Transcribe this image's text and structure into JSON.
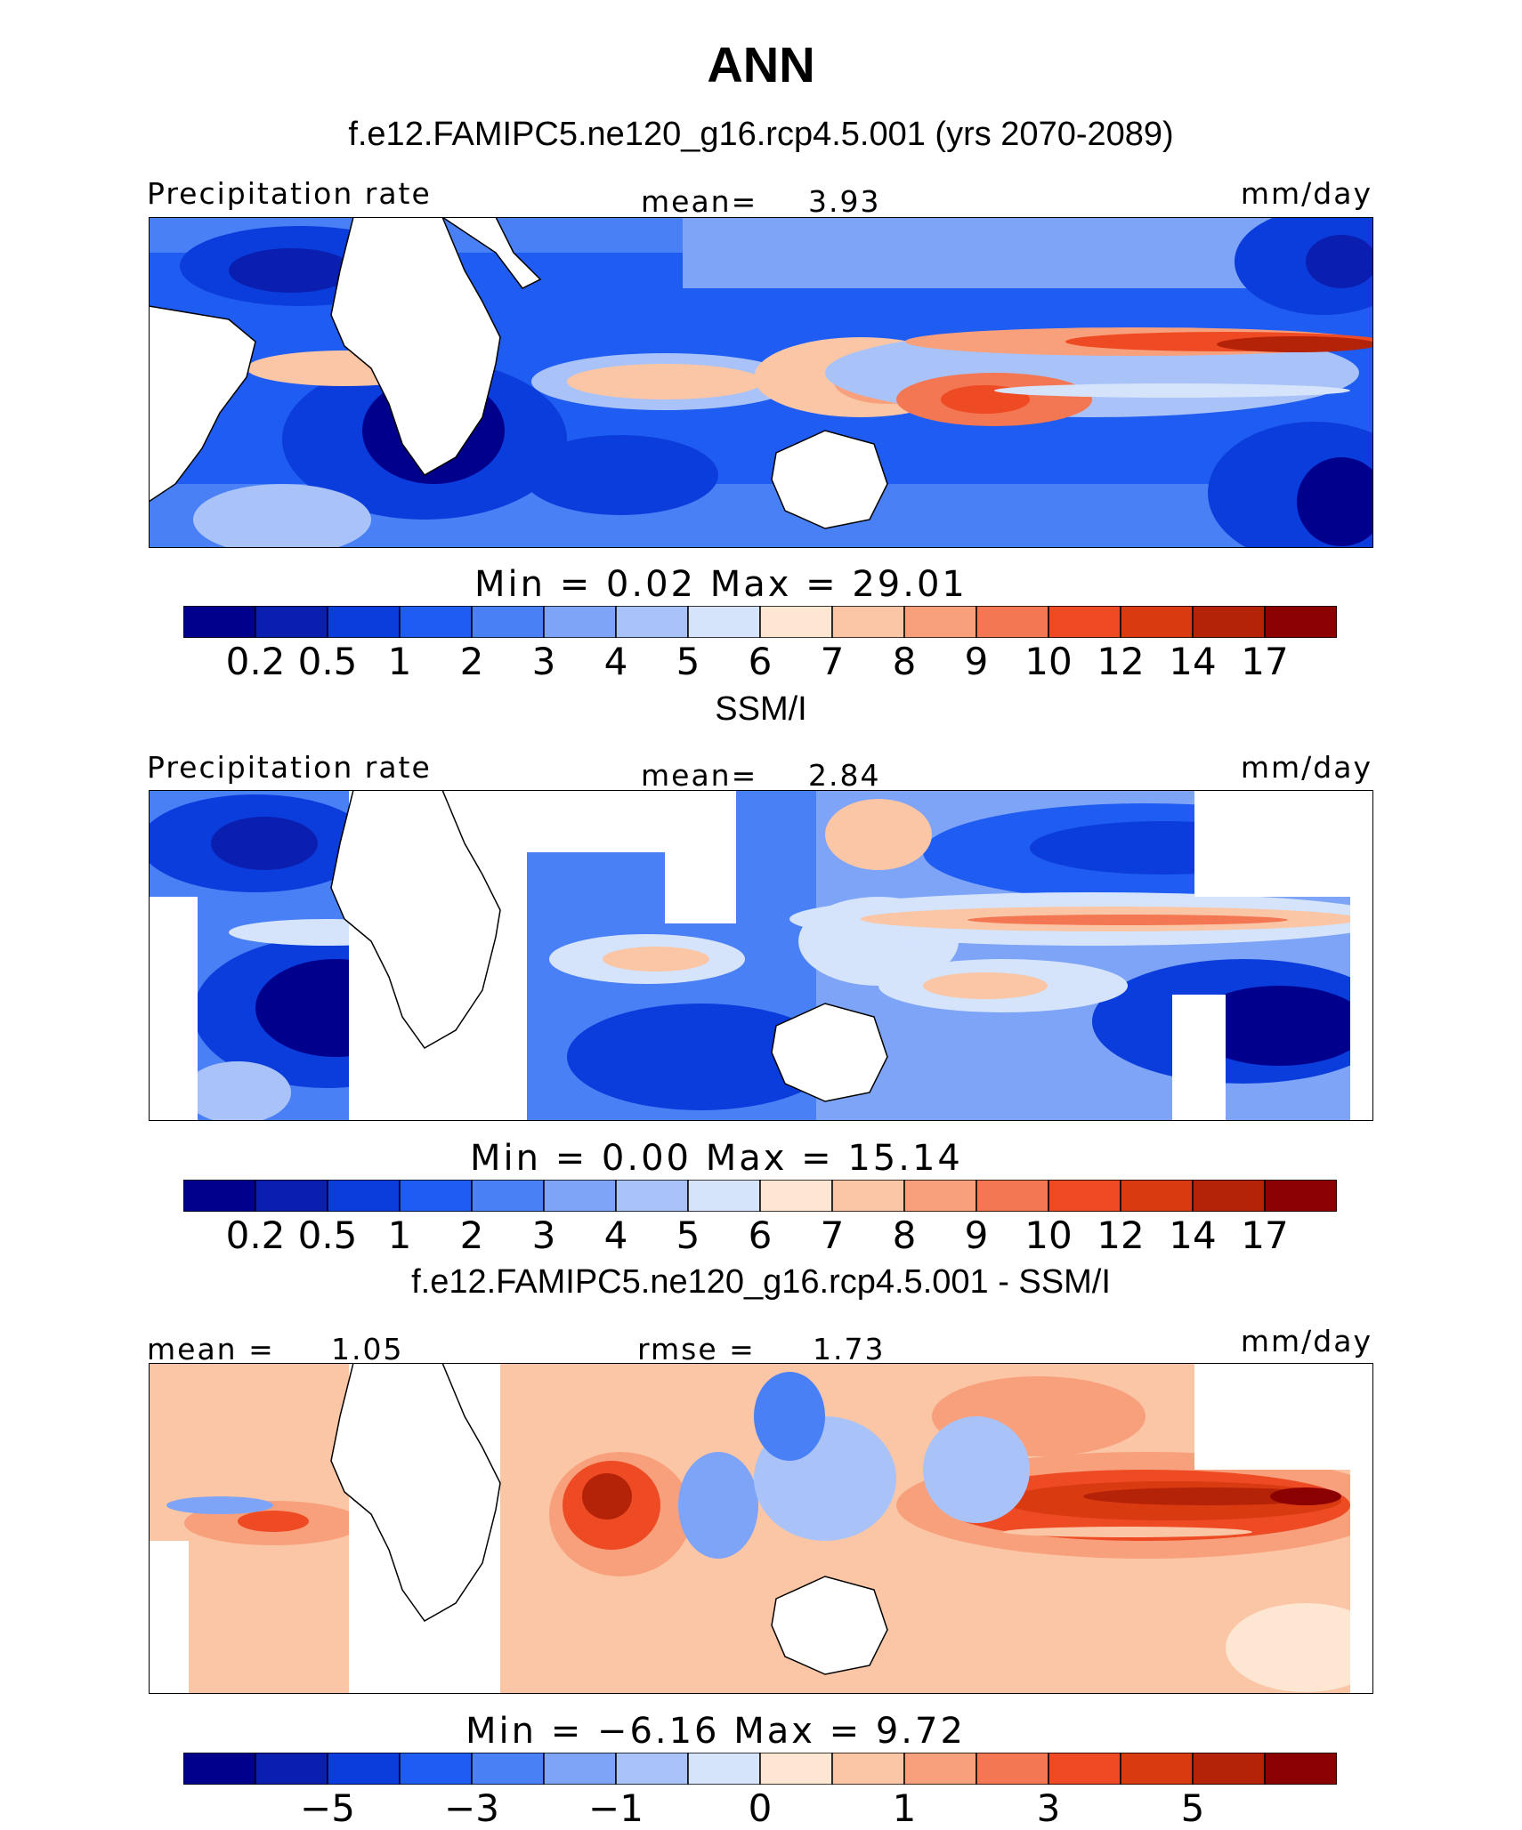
{
  "figure": {
    "title": "ANN"
  },
  "panels": [
    {
      "title": "f.e12.FAMIPC5.ne120_g16.rcp4.5.001 (yrs 2070-2089)",
      "left_label": "Precipitation rate",
      "center_label": "mean=",
      "center_value": "3.93",
      "right_label": "mm/day",
      "minmax_text": "Min  =    0.02  Max  =   29.01"
    },
    {
      "title": "SSM/I",
      "left_label": "Precipitation rate",
      "center_label": "mean=",
      "center_value": "2.84",
      "right_label": "mm/day",
      "minmax_text": "Min  =    0.00  Max  =   15.14"
    },
    {
      "title": "f.e12.FAMIPC5.ne120_g16.rcp4.5.001 - SSM/I",
      "left_label": "mean =",
      "left_value": "1.05",
      "center_label": "rmse =",
      "center_value": "1.73",
      "right_label": "mm/day",
      "minmax_text": "Min  =  −6.16  Max  =    9.72"
    }
  ],
  "colorbars": {
    "precip": {
      "colors": [
        "#00008c",
        "#0a1fb0",
        "#0b3cdc",
        "#1f5cf2",
        "#4a80f5",
        "#7ea4f7",
        "#a9c3f9",
        "#d5e3fb",
        "#fde7d3",
        "#fbc6a5",
        "#f8a07c",
        "#f47753",
        "#ee4a23",
        "#d93a10",
        "#b42208",
        "#8b0000"
      ],
      "tick_labels": [
        "0.2",
        "0.5",
        "1",
        "2",
        "3",
        "4",
        "5",
        "6",
        "7",
        "8",
        "9",
        "10",
        "12",
        "14",
        "17"
      ]
    },
    "diff": {
      "colors": [
        "#00008c",
        "#0a1fb0",
        "#0b3cdc",
        "#1f5cf2",
        "#4a80f5",
        "#7ea4f7",
        "#a9c3f9",
        "#d5e3fb",
        "#fde7d3",
        "#fbc6a5",
        "#f8a07c",
        "#f47753",
        "#ee4a23",
        "#d93a10",
        "#b42208",
        "#8b0000"
      ],
      "tick_labels": [
        "−5",
        "−3",
        "−1",
        "0",
        "1",
        "3",
        "5"
      ]
    }
  },
  "chart_data": [
    {
      "type": "heatmap",
      "title": "f.e12.FAMIPC5.ne120_g16.rcp4.5.001 (yrs 2070-2089)",
      "variable": "Precipitation rate",
      "units": "mm/day",
      "mean": 3.93,
      "min": 0.02,
      "max": 29.01,
      "contour_levels": [
        0.2,
        0.5,
        1,
        2,
        3,
        4,
        5,
        6,
        7,
        8,
        9,
        10,
        12,
        14,
        17
      ]
    },
    {
      "type": "heatmap",
      "title": "SSM/I",
      "variable": "Precipitation rate",
      "units": "mm/day",
      "mean": 2.84,
      "min": 0.0,
      "max": 15.14,
      "contour_levels": [
        0.2,
        0.5,
        1,
        2,
        3,
        4,
        5,
        6,
        7,
        8,
        9,
        10,
        12,
        14,
        17
      ]
    },
    {
      "type": "heatmap",
      "title": "f.e12.FAMIPC5.ne120_g16.rcp4.5.001 - SSM/I",
      "units": "mm/day",
      "mean": 1.05,
      "rmse": 1.73,
      "min": -6.16,
      "max": 9.72,
      "tick_labels": [
        -5,
        -3,
        -1,
        0,
        1,
        3,
        5
      ]
    }
  ]
}
